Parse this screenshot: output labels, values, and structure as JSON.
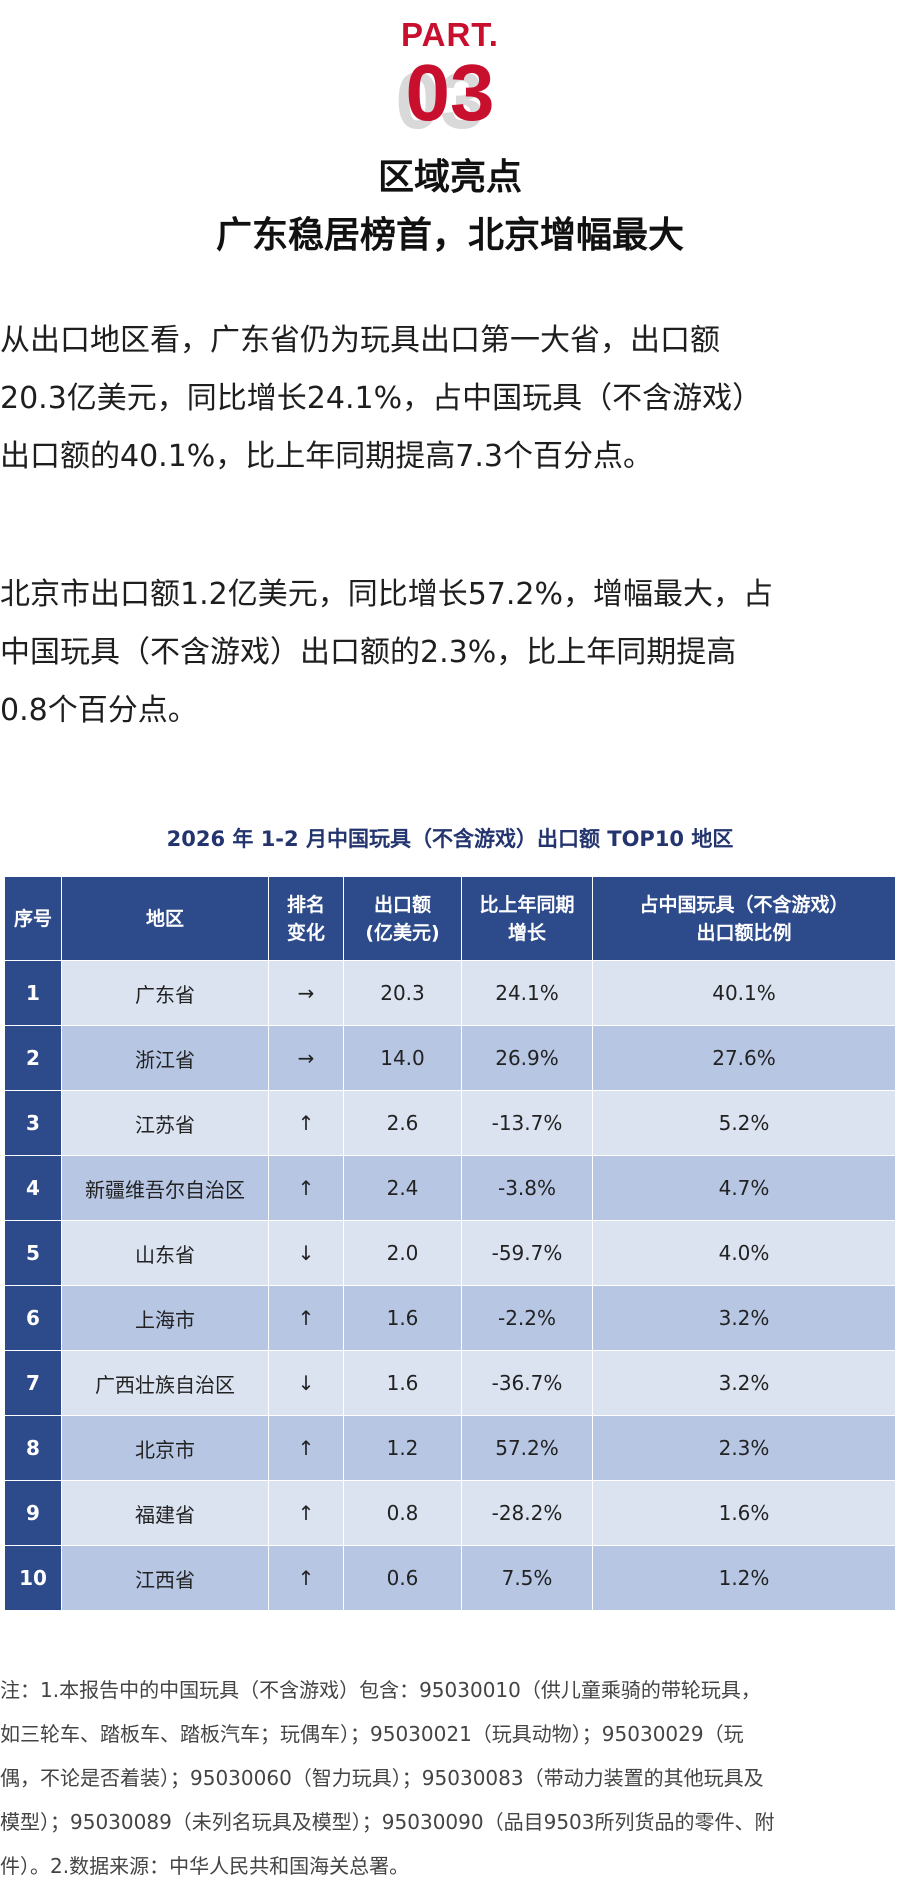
{
  "header": {
    "part_label": "PART.",
    "part_number": "03",
    "title_line1": "区域亮点",
    "title_line2": "广东稳居榜首，北京增幅最大"
  },
  "paragraphs": [
    {
      "lines": [
        "从出口地区看，广东省仍为玩具出口第一大省，出口额",
        "20.3亿美元，同比增长24.1%，占中国玩具（不含游戏）",
        "出口额的40.1%，比上年同期提高7.3个百分点。"
      ]
    },
    {
      "lines": [
        "北京市出口额1.2亿美元，同比增长57.2%，增幅最大，占",
        "中国玩具（不含游戏）出口额的2.3%，比上年同期提高",
        "0.8个百分点。"
      ]
    }
  ],
  "table": {
    "title": "2026 年 1-2 月中国玩具（不含游戏）出口额 TOP10 地区",
    "headers": [
      {
        "line1": "序号",
        "line2": ""
      },
      {
        "line1": "地区",
        "line2": ""
      },
      {
        "line1": "排名",
        "line2": "变化"
      },
      {
        "line1": "出口额",
        "line2": "(亿美元)"
      },
      {
        "line1": "比上年同期",
        "line2": "增长"
      },
      {
        "line1": "占中国玩具（不含游戏）",
        "line2": "出口额比例"
      }
    ],
    "rows": [
      {
        "index": "1",
        "region": "广东省",
        "rank_change": "→",
        "export": "20.3",
        "growth": "24.1%",
        "share": "40.1%"
      },
      {
        "index": "2",
        "region": "浙江省",
        "rank_change": "→",
        "export": "14.0",
        "growth": "26.9%",
        "share": "27.6%"
      },
      {
        "index": "3",
        "region": "江苏省",
        "rank_change": "↑",
        "export": "2.6",
        "growth": "-13.7%",
        "share": "5.2%"
      },
      {
        "index": "4",
        "region": "新疆维吾尔自治区",
        "rank_change": "↑",
        "export": "2.4",
        "growth": "-3.8%",
        "share": "4.7%"
      },
      {
        "index": "5",
        "region": "山东省",
        "rank_change": "↓",
        "export": "2.0",
        "growth": "-59.7%",
        "share": "4.0%"
      },
      {
        "index": "6",
        "region": "上海市",
        "rank_change": "↑",
        "export": "1.6",
        "growth": "-2.2%",
        "share": "3.2%"
      },
      {
        "index": "7",
        "region": "广西壮族自治区",
        "rank_change": "↓",
        "export": "1.6",
        "growth": "-36.7%",
        "share": "3.2%"
      },
      {
        "index": "8",
        "region": "北京市",
        "rank_change": "↑",
        "export": "1.2",
        "growth": "57.2%",
        "share": "2.3%"
      },
      {
        "index": "9",
        "region": "福建省",
        "rank_change": "↑",
        "export": "0.8",
        "growth": "-28.2%",
        "share": "1.6%"
      },
      {
        "index": "10",
        "region": "江西省",
        "rank_change": "↑",
        "export": "0.6",
        "growth": "7.5%",
        "share": "1.2%"
      }
    ]
  },
  "notes": {
    "lines": [
      "注：1.本报告中的中国玩具（不含游戏）包含：95030010（供儿童乘骑的带轮玩具，",
      "如三轮车、踏板车、踏板汽车；玩偶车）；95030021（玩具动物）；95030029（玩",
      "偶，不论是否着装）；95030060（智力玩具）；95030083（带动力装置的其他玩具及",
      "模型）；95030089（未列名玩具及模型）；95030090（品目9503所列货品的零件、附",
      "件）。2.数据来源：中华人民共和国海关总署。"
    ]
  },
  "colors": {
    "accent_red": "#c8102e",
    "table_header_blue": "#2d4a8a",
    "row_light": "#dbe3f1",
    "row_dark": "#b7c6e3",
    "title_navy": "#23346e"
  }
}
